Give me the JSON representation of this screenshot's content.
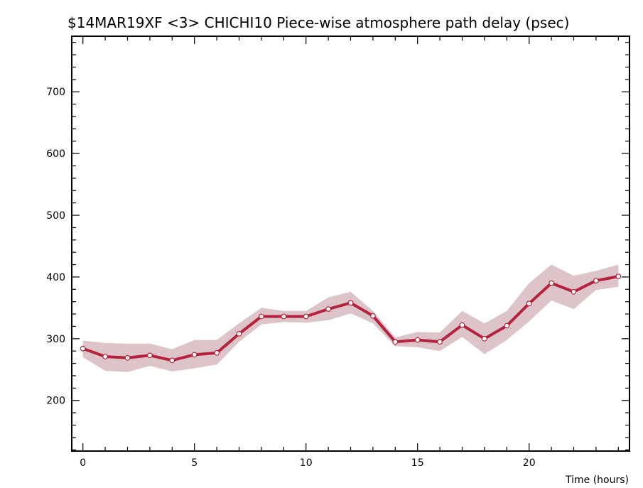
{
  "chart_data": {
    "type": "line",
    "title": "$14MAR19XF <3>   CHICHI10   Piece-wise atmosphere path delay (psec)",
    "xlabel": "Time (hours)",
    "ylabel": "",
    "xlim": [
      -0.5,
      24.5
    ],
    "ylim": [
      118,
      790
    ],
    "x_ticks": [
      0,
      5,
      10,
      15,
      20
    ],
    "y_ticks": [
      200,
      300,
      400,
      500,
      600,
      700
    ],
    "grid": false,
    "series": [
      {
        "x": [
          0,
          1,
          2,
          3,
          4,
          5,
          6,
          7,
          8,
          9,
          10,
          11,
          12,
          13,
          14,
          15,
          16,
          17,
          18,
          19,
          20,
          21,
          22,
          23,
          24
        ],
        "values": [
          284,
          271,
          269,
          273,
          265,
          274,
          277,
          308,
          336,
          336,
          336,
          348,
          358,
          337,
          295,
          298,
          295,
          322,
          300,
          321,
          357,
          390,
          376,
          394,
          401
        ],
        "upper": [
          297,
          293,
          292,
          292,
          283,
          298,
          298,
          325,
          350,
          345,
          345,
          367,
          376,
          345,
          302,
          311,
          310,
          345,
          325,
          345,
          390,
          420,
          402,
          410,
          420
        ],
        "lower": [
          270,
          248,
          246,
          256,
          247,
          252,
          258,
          295,
          323,
          327,
          326,
          330,
          341,
          325,
          288,
          286,
          280,
          303,
          275,
          298,
          328,
          362,
          348,
          379,
          384
        ]
      }
    ],
    "colors": {
      "line": "#b5223d",
      "band": "#dcc4c8",
      "marker_fill": "#ffffff"
    }
  }
}
